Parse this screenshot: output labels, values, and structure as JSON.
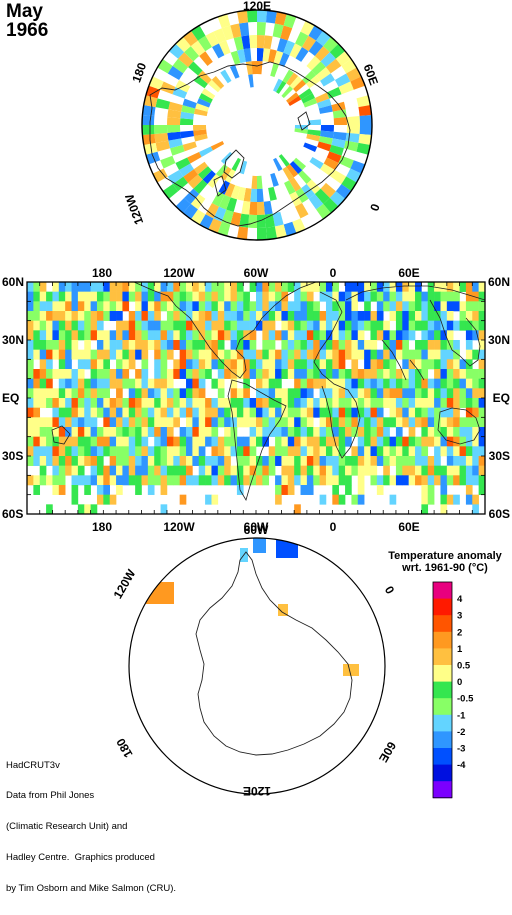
{
  "header": {
    "month": "May",
    "year": "1966"
  },
  "legend": {
    "title": "Temperature anomaly",
    "subtitle": "wrt. 1961-90  (°C)",
    "colors": [
      "#7b00ff",
      "#0010e0",
      "#0050ff",
      "#2f96ff",
      "#63d4ff",
      "#88ff66",
      "#35e64f",
      "#ffff88",
      "#ffc040",
      "#ff9920",
      "#ff5500",
      "#ff1a00",
      "#e8007f"
    ],
    "labels": [
      "-4",
      "-3",
      "-2",
      "-1",
      "-0.5",
      "0",
      "0.5",
      "1",
      "2",
      "3",
      "4"
    ]
  },
  "north_map": {
    "labels": {
      "top": "120E",
      "right": "60E",
      "left": "180",
      "lower_right": "0",
      "lower_left": "120W"
    }
  },
  "world_map": {
    "top_lon_labels": [
      "180",
      "120W",
      "60W",
      "0",
      "60E"
    ],
    "bottom_lon_labels": [
      "180",
      "120W",
      "60W",
      "0",
      "60E"
    ],
    "lat_labels": [
      "60N",
      "30N",
      "EQ",
      "30S",
      "60S"
    ]
  },
  "south_map": {
    "labels": {
      "top": "60W",
      "left": "120W",
      "right": "0",
      "lower_left": "180",
      "lower_right": "60E",
      "bottom": "120E"
    }
  },
  "credit": {
    "lines": [
      "HadCRUT3v",
      "Data from Phil Jones",
      "(Climatic Research Unit) and",
      "Hadley Centre.  Graphics produced",
      "by Tim Osborn and Mike Salmon (CRU)."
    ]
  }
}
